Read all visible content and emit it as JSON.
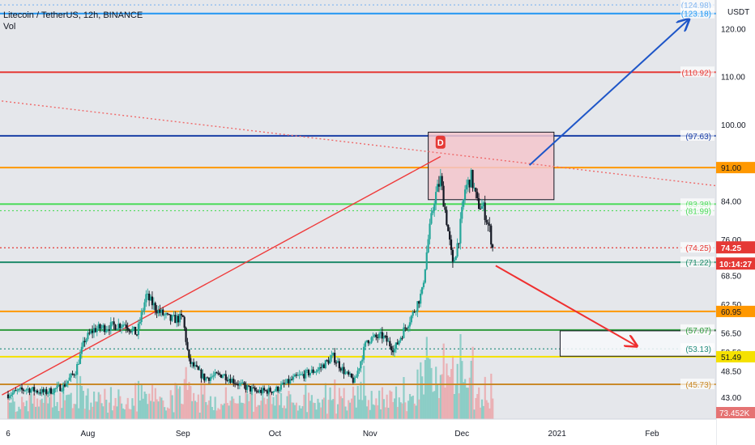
{
  "header": {
    "title": "Litecoin / TetherUS, 12h, BINANCE",
    "volume_label": "Vol",
    "currency": "USDT"
  },
  "colors": {
    "background": "#ffffff",
    "plot_background": "#e5e7eb",
    "up_candle": "#26a69a",
    "down_candle": "#131722",
    "volume_up": "#7fc9c1",
    "volume_down": "#eba7ac",
    "trend_up": "#ef3a3a",
    "trend_down_dotted": "#ef6a6a",
    "blue_arrow": "#1e56c8",
    "red_arrow": "#ef2f2f"
  },
  "chart_data": {
    "type": "candlestick",
    "title": "Litecoin / TetherUS, 12h, BINANCE",
    "ylabel": "USDT",
    "ylim": [
      41.5,
      125.5
    ],
    "y_scale": "linear",
    "x_ticks": [
      {
        "label": "6",
        "date": "2020-07-06"
      },
      {
        "label": "Aug",
        "date": "2020-08-01"
      },
      {
        "label": "Sep",
        "date": "2020-09-01"
      },
      {
        "label": "Oct",
        "date": "2020-10-01"
      },
      {
        "label": "Nov",
        "date": "2020-11-01"
      },
      {
        "label": "Dec",
        "date": "2020-12-01"
      },
      {
        "label": "2021",
        "date": "2021-01-01"
      },
      {
        "label": "Feb",
        "date": "2021-02-01"
      }
    ],
    "price_ticks": [
      "120.00",
      "110.00",
      "100.00",
      "84.00",
      "76.00",
      "68.50",
      "62.50",
      "56.50",
      "52.50",
      "48.50",
      "43.00"
    ],
    "horizontal_levels": [
      {
        "value": 124.98,
        "label": "124.98",
        "color": "#7fb4f0",
        "style": "dotted",
        "highlight": false
      },
      {
        "value": 123.18,
        "label": "123.18",
        "color": "#2196f3",
        "style": "solid",
        "highlight": false
      },
      {
        "value": 110.92,
        "label": "110.92",
        "color": "#e53935",
        "style": "solid",
        "highlight": false
      },
      {
        "value": 97.63,
        "label": "97.63",
        "color": "#1a3fa6",
        "style": "solid",
        "highlight": false
      },
      {
        "value": 91.0,
        "label": "91.00",
        "color": "#ff9800",
        "style": "solid",
        "highlight": true
      },
      {
        "value": 83.38,
        "label": "83.38",
        "color": "#4cdb5a",
        "style": "solid",
        "highlight": false
      },
      {
        "value": 81.99,
        "label": "81.99",
        "color": "#4cdb5a",
        "style": "dotted",
        "highlight": false
      },
      {
        "value": 74.25,
        "label": "74.25",
        "color": "#e53935",
        "style": "dotted",
        "highlight": false
      },
      {
        "value": 71.22,
        "label": "71.22",
        "color": "#1e8a6a",
        "style": "solid",
        "highlight": false
      },
      {
        "value": 60.95,
        "label": "60.95",
        "color": "#ff9800",
        "style": "solid",
        "highlight": true
      },
      {
        "value": 57.07,
        "label": "57.07",
        "color": "#2e9b3c",
        "style": "solid",
        "highlight": false
      },
      {
        "value": 53.13,
        "label": "53.13",
        "color": "#1f8a7a",
        "style": "dotted",
        "highlight": false
      },
      {
        "value": 51.49,
        "label": "51.49",
        "color": "#f5e100",
        "style": "solid",
        "highlight": true
      },
      {
        "value": 45.73,
        "label": "45.73",
        "color": "#c98a2a",
        "style": "solid",
        "highlight": false
      }
    ],
    "last_price": {
      "value": 74.25,
      "label": "74.25",
      "countdown": "10:14:27",
      "color": "#e53935"
    },
    "volume_badge": {
      "label": "73.452K",
      "color": "#e57373"
    },
    "marker": {
      "label": "D",
      "date": "2020-11-24",
      "price": 96.3,
      "color": "#e53935"
    },
    "trendlines": [
      {
        "from": {
          "date": "2020-07-04",
          "price": 43.5
        },
        "to": {
          "date": "2020-11-24",
          "price": 93.3
        },
        "color": "#ef3a3a",
        "style": "solid"
      },
      {
        "from": {
          "date": "2020-06-30",
          "price": 105.2
        },
        "to": {
          "date": "2021-02-22",
          "price": 87.2
        },
        "color": "#ef6a6a",
        "style": "dotted"
      },
      {
        "from": {
          "date": "2020-12-23",
          "price": 91.5
        },
        "to": {
          "date": "2021-02-13",
          "price": 122.0
        },
        "color": "#1e56c8",
        "style": "arrow"
      },
      {
        "from": {
          "date": "2020-12-12",
          "price": 70.5
        },
        "to": {
          "date": "2021-01-27",
          "price": 53.7
        },
        "color": "#ef2f2f",
        "style": "arrow"
      }
    ],
    "zones": [
      {
        "from": {
          "date": "2020-11-20",
          "price": 98.4
        },
        "to": {
          "date": "2020-12-31",
          "price": 84.3
        },
        "fill": "#f4c6cc",
        "border": "#131722"
      },
      {
        "from": {
          "date": "2021-01-02",
          "price": 56.9
        },
        "to": {
          "date": "2021-02-26",
          "price": 51.6
        },
        "fill": "#f7f8fb",
        "border": "#131722"
      }
    ],
    "price_path": [
      [
        "2020-07-06",
        43.6
      ],
      [
        "2020-07-12",
        44.8
      ],
      [
        "2020-07-18",
        44.0
      ],
      [
        "2020-07-24",
        45.3
      ],
      [
        "2020-07-28",
        48.5
      ],
      [
        "2020-07-31",
        55.0
      ],
      [
        "2020-08-03",
        57.2
      ],
      [
        "2020-08-08",
        57.8
      ],
      [
        "2020-08-13",
        58.4
      ],
      [
        "2020-08-17",
        56.2
      ],
      [
        "2020-08-20",
        64.2
      ],
      [
        "2020-08-24",
        61.0
      ],
      [
        "2020-08-28",
        59.2
      ],
      [
        "2020-09-01",
        59.6
      ],
      [
        "2020-09-03",
        50.5
      ],
      [
        "2020-09-08",
        47.0
      ],
      [
        "2020-09-14",
        47.8
      ],
      [
        "2020-09-20",
        45.5
      ],
      [
        "2020-09-25",
        44.2
      ],
      [
        "2020-10-01",
        44.5
      ],
      [
        "2020-10-08",
        47.2
      ],
      [
        "2020-10-15",
        48.8
      ],
      [
        "2020-10-20",
        51.5
      ],
      [
        "2020-10-24",
        48.0
      ],
      [
        "2020-10-27",
        46.3
      ],
      [
        "2020-10-31",
        55.0
      ],
      [
        "2020-11-05",
        55.8
      ],
      [
        "2020-11-09",
        53.0
      ],
      [
        "2020-11-12",
        57.0
      ],
      [
        "2020-11-15",
        60.5
      ],
      [
        "2020-11-18",
        65.0
      ],
      [
        "2020-11-20",
        76.0
      ],
      [
        "2020-11-22",
        84.5
      ],
      [
        "2020-11-24",
        88.5
      ],
      [
        "2020-11-26",
        80.0
      ],
      [
        "2020-11-28",
        70.5
      ],
      [
        "2020-11-30",
        76.5
      ],
      [
        "2020-12-02",
        86.5
      ],
      [
        "2020-12-04",
        89.0
      ],
      [
        "2020-12-06",
        83.5
      ],
      [
        "2020-12-08",
        82.5
      ],
      [
        "2020-12-10",
        78.0
      ],
      [
        "2020-12-11",
        74.25
      ]
    ]
  }
}
